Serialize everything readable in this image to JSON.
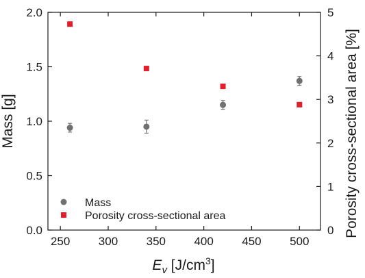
{
  "chart_data": {
    "type": "scatter",
    "x": [
      260,
      340,
      420,
      500
    ],
    "xlim": [
      237,
      522
    ],
    "xticks": [
      250,
      300,
      350,
      400,
      450,
      500
    ],
    "xlabel": {
      "main": "E",
      "sub": "v",
      "unit": " [J/cm",
      "sup": "3",
      "close": "]"
    },
    "y_left": {
      "label": "Mass [g]",
      "lim": [
        0,
        2
      ],
      "ticks": [
        "0.0",
        "0.5",
        "1.0",
        "1.5",
        "2.0"
      ]
    },
    "y_right": {
      "label": "Porosity cross-sectional area [%]",
      "lim": [
        0,
        5
      ],
      "ticks": [
        "0",
        "1",
        "2",
        "3",
        "4",
        "5"
      ]
    },
    "series": [
      {
        "name": "Mass",
        "axis": "left",
        "marker": "circle",
        "color": "#707070",
        "values": [
          0.94,
          0.95,
          1.15,
          1.37
        ],
        "errors": [
          0.04,
          0.06,
          0.04,
          0.04
        ]
      },
      {
        "name": "Porosity cross-sectional area",
        "axis": "right",
        "marker": "square",
        "color": "#e0202a",
        "values": [
          4.73,
          3.71,
          3.3,
          2.88
        ]
      }
    ],
    "legend": "bottom-left",
    "grid": false
  }
}
